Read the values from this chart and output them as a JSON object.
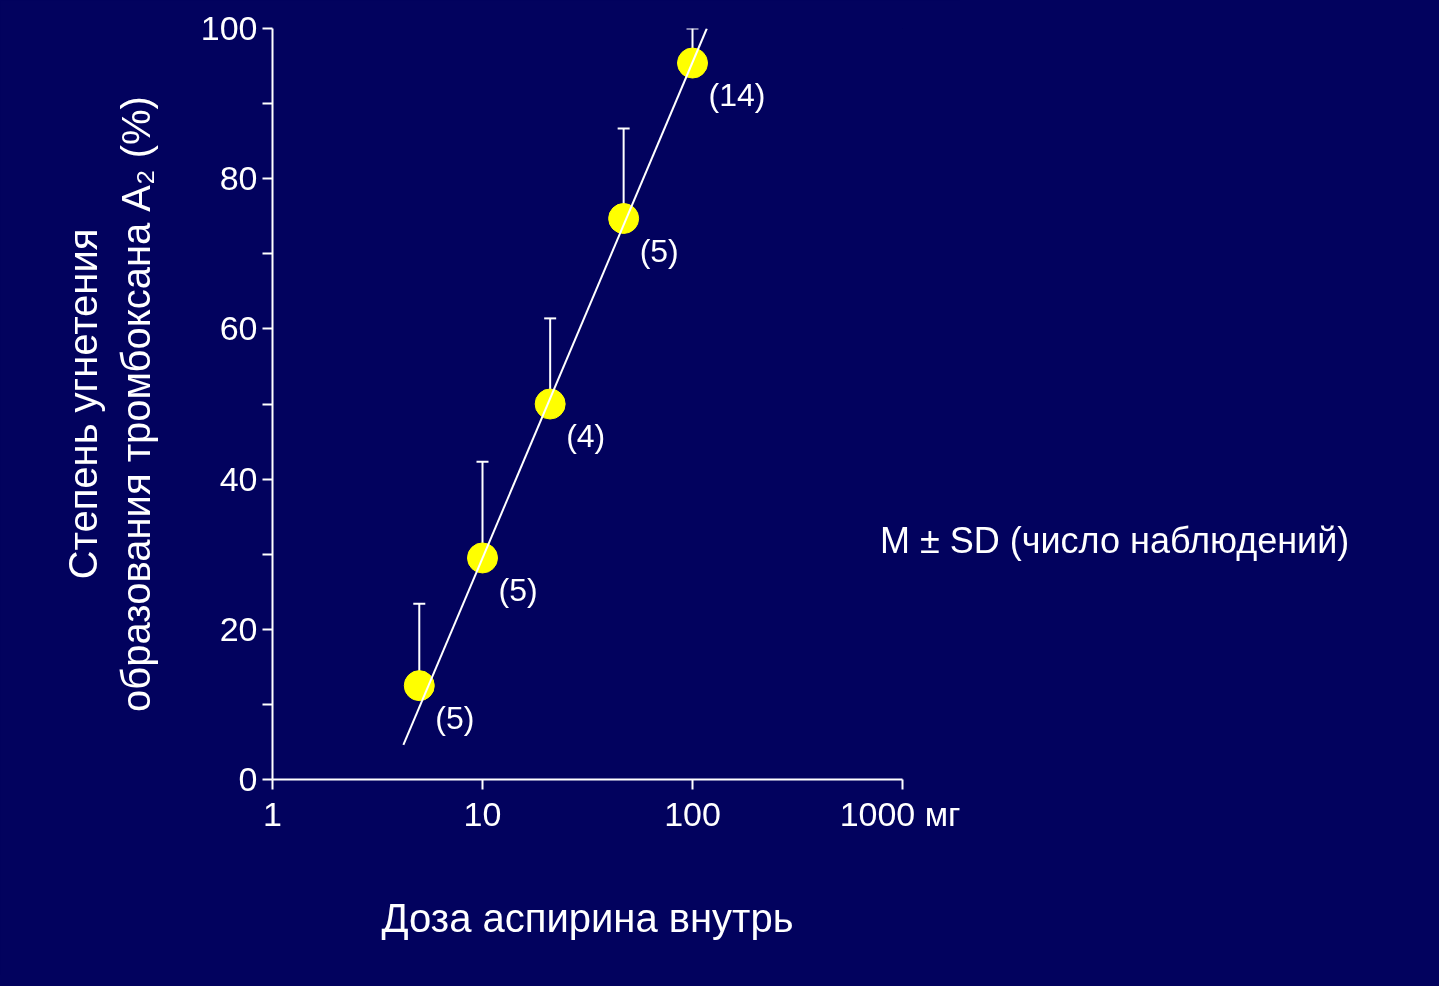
{
  "chart_data": {
    "type": "scatter",
    "ylabel": "Степень угнетения\nобразования тромбоксана A₂ (%)",
    "xlabel": "Доза аспирина внутрь",
    "log": "x",
    "xlim": [
      1,
      1000
    ],
    "xticks": [
      1,
      10,
      100,
      {
        "value": 1000,
        "label": "1000 мг"
      }
    ],
    "ylim": [
      0,
      100
    ],
    "yticks": [
      0,
      {
        "value": 10,
        "label": null
      },
      20,
      {
        "value": 30,
        "label": null
      },
      40,
      {
        "value": 50,
        "label": null
      },
      60,
      {
        "value": 70,
        "label": null
      },
      80,
      {
        "value": 90,
        "label": null
      },
      100
    ],
    "grid": false,
    "marker": "circle",
    "series": [
      {
        "color": "#ffff00",
        "x": [
          5,
          10,
          21,
          47,
          100
        ],
        "values": [
          12.5,
          29.5,
          50,
          74.7,
          95.4
        ],
        "errors": [
          [
            12.5,
            23.4
          ],
          [
            29.5,
            42.3
          ],
          [
            50,
            61.4
          ],
          [
            74.7,
            86.7
          ],
          [
            95.4,
            100
          ]
        ]
      },
      {
        "type": "line",
        "color": "#ffffff",
        "x": [
          4.2,
          117
        ],
        "values": [
          4.6,
          100
        ],
        "marker": "none",
        "line_style": "solid"
      }
    ],
    "annotations": [
      {
        "text": "(5)",
        "x": 5,
        "y": 12.5
      },
      {
        "text": "(5)",
        "x": 10,
        "y": 29.5
      },
      {
        "text": "(4)",
        "x": 21,
        "y": 50
      },
      {
        "text": "(5)",
        "x": 47,
        "y": 74.7
      },
      {
        "text": "(14)",
        "x": 100,
        "y": 95.4
      },
      "M ± SD (число наблюдений)"
    ]
  }
}
